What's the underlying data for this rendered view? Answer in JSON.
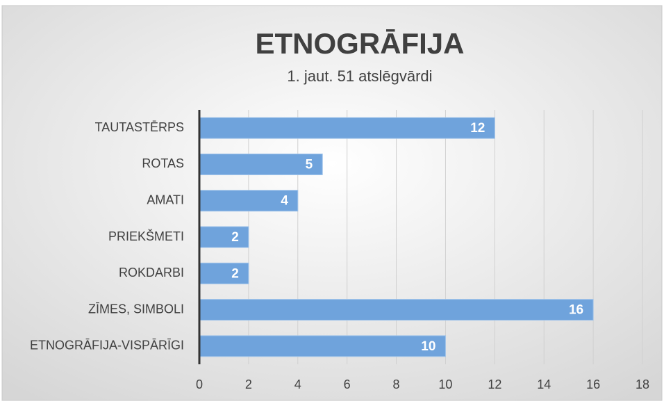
{
  "chart_data": {
    "type": "barh",
    "title": "ETNOGRĀFIJA",
    "subtitle": "1. jaut. 51 atslēgvārdi",
    "categories": [
      "TAUTASTĒRPS",
      "ROTAS",
      "AMATI",
      "PRIEKŠMETI",
      "ROKDARBI",
      "ZĪMES, SIMBOLI",
      "ETNOGRĀFIJA-VISPĀRĪGI"
    ],
    "values": [
      12,
      5,
      4,
      2,
      2,
      16,
      10
    ],
    "color": "#6fa3dc",
    "xlim": [
      0,
      18
    ],
    "xticks": [
      0,
      2,
      4,
      6,
      8,
      10,
      12,
      14,
      16,
      18
    ],
    "grid": true
  }
}
